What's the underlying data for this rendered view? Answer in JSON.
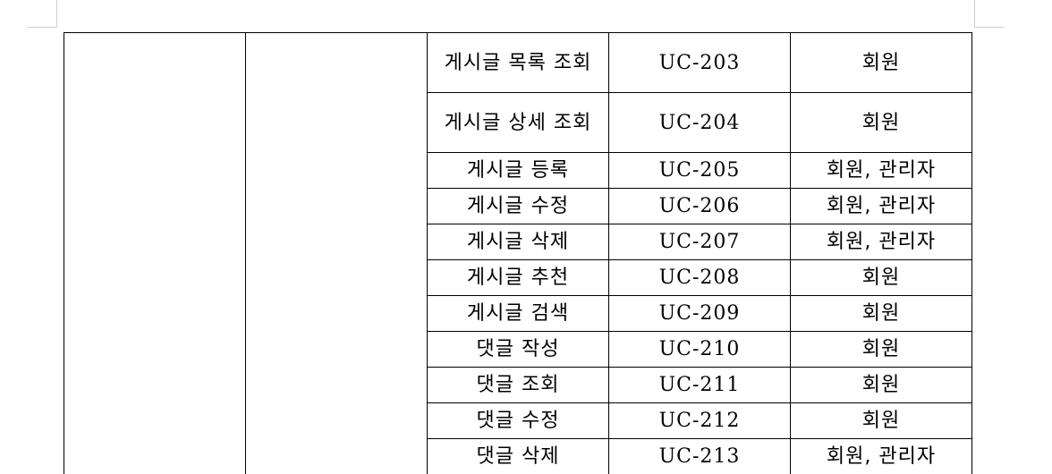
{
  "table": {
    "rows": [
      {
        "name": "게시글 목록 조회",
        "id": "UC-203",
        "actor": "회원"
      },
      {
        "name": "게시글 상세 조회",
        "id": "UC-204",
        "actor": "회원"
      },
      {
        "name": "게시글 등록",
        "id": "UC-205",
        "actor": "회원, 관리자"
      },
      {
        "name": "게시글 수정",
        "id": "UC-206",
        "actor": "회원, 관리자"
      },
      {
        "name": "게시글 삭제",
        "id": "UC-207",
        "actor": "회원, 관리자"
      },
      {
        "name": "게시글 추천",
        "id": "UC-208",
        "actor": "회원"
      },
      {
        "name": "게시글 검색",
        "id": "UC-209",
        "actor": "회원"
      },
      {
        "name": "댓글 작성",
        "id": "UC-210",
        "actor": "회원"
      },
      {
        "name": "댓글 조회",
        "id": "UC-211",
        "actor": "회원"
      },
      {
        "name": "댓글 수정",
        "id": "UC-212",
        "actor": "회원"
      },
      {
        "name": "댓글 삭제",
        "id": "UC-213",
        "actor": "회원, 관리자"
      }
    ]
  }
}
